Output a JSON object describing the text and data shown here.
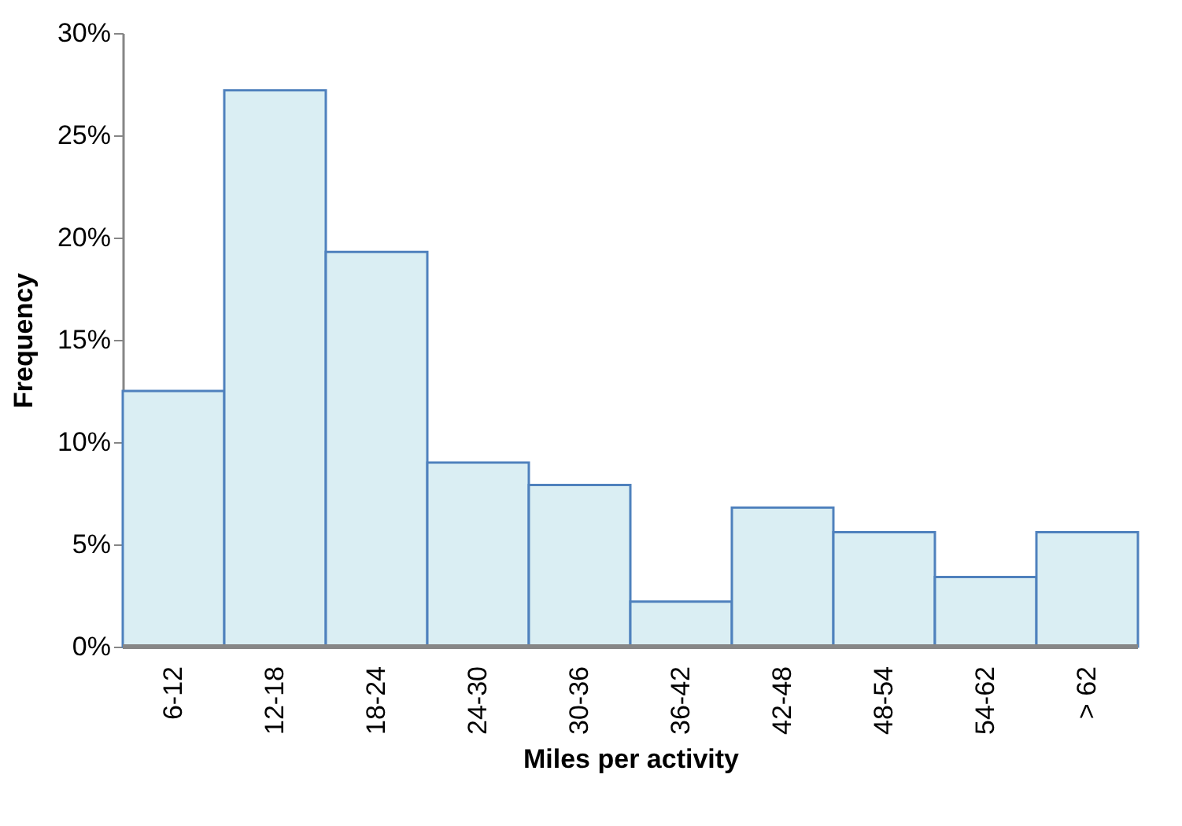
{
  "chart_data": {
    "type": "bar",
    "xlabel": "Miles per activity",
    "ylabel": "Frequency",
    "categories": [
      "6-12",
      "12-18",
      "18-24",
      "24-30",
      "30-36",
      "36-42",
      "42-48",
      "48-54",
      "54-62",
      "> 62"
    ],
    "values": [
      12.5,
      27.2,
      19.3,
      9.0,
      7.9,
      2.2,
      6.8,
      5.6,
      3.4,
      5.6
    ],
    "color": "#daeef3",
    "ylim": [
      0,
      30
    ],
    "yticks": [
      {
        "value": 0,
        "label": "0%"
      },
      {
        "value": 5,
        "label": "5%"
      },
      {
        "value": 10,
        "label": "10%"
      },
      {
        "value": 15,
        "label": "15%"
      },
      {
        "value": 20,
        "label": "20%"
      },
      {
        "value": 25,
        "label": "25%"
      },
      {
        "value": 30,
        "label": "30%"
      }
    ],
    "grid": false
  }
}
